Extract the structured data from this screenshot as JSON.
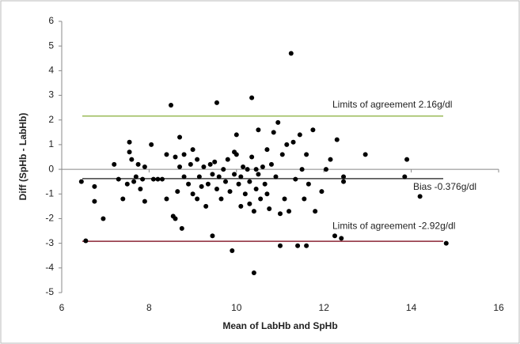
{
  "chart_data": {
    "type": "scatter",
    "x_label": "Mean of LabHb and SpHb",
    "y_label": "Diff (SpHb - LabHb)",
    "color": "#000000",
    "xlim": [
      6,
      16
    ],
    "xticks": [
      6,
      8,
      10,
      12,
      14,
      16
    ],
    "ylim": [
      -5,
      6
    ],
    "yticks": [
      -5,
      -4,
      -3,
      -2,
      -1,
      0,
      1,
      2,
      3,
      4,
      5,
      6
    ],
    "x": [
      6.45,
      6.55,
      6.75,
      6.75,
      6.95,
      7.2,
      7.4,
      7.5,
      7.55,
      7.55,
      7.6,
      7.65,
      7.7,
      7.75,
      7.8,
      7.85,
      7.9,
      7.9,
      8.05,
      8.1,
      8.2,
      8.3,
      8.4,
      8.4,
      8.5,
      8.55,
      8.6,
      8.6,
      8.65,
      8.7,
      8.7,
      8.75,
      8.8,
      8.8,
      8.9,
      8.95,
      9.0,
      9.0,
      9.1,
      9.1,
      9.15,
      9.2,
      9.25,
      9.3,
      9.35,
      9.4,
      9.45,
      9.45,
      9.5,
      9.55,
      9.55,
      9.6,
      9.65,
      9.7,
      9.75,
      9.8,
      9.85,
      9.9,
      9.95,
      9.95,
      10.0,
      10.0,
      10.05,
      10.1,
      10.1,
      10.15,
      10.2,
      10.25,
      10.3,
      10.3,
      10.35,
      10.35,
      10.4,
      10.4,
      10.45,
      10.45,
      10.5,
      10.5,
      10.55,
      10.6,
      10.65,
      10.7,
      10.7,
      10.75,
      10.8,
      10.85,
      10.9,
      10.95,
      11.0,
      11.0,
      11.05,
      11.1,
      11.15,
      11.2,
      11.25,
      11.3,
      11.35,
      11.4,
      11.45,
      11.5,
      11.55,
      11.6,
      11.65,
      11.75,
      11.8,
      11.95,
      12.05,
      12.15,
      12.25,
      12.3,
      12.4,
      12.45,
      12.45,
      12.95,
      13.85,
      13.9,
      14.2,
      14.8,
      11.6,
      7.3
    ],
    "values": [
      -0.5,
      -2.9,
      -0.7,
      -1.3,
      -2.0,
      0.2,
      -1.2,
      -0.6,
      1.1,
      0.7,
      0.4,
      -0.5,
      -0.3,
      0.2,
      -0.8,
      -0.4,
      -1.3,
      0.1,
      1.0,
      -0.4,
      -0.4,
      -0.4,
      -1.2,
      0.6,
      2.6,
      -1.9,
      -2.0,
      0.5,
      -0.9,
      1.3,
      0.1,
      -2.4,
      -0.3,
      0.6,
      -0.6,
      0.2,
      0.8,
      -1.0,
      0.4,
      -1.2,
      -0.3,
      -0.7,
      0.1,
      -1.5,
      -0.6,
      0.2,
      -0.2,
      -2.7,
      0.3,
      2.7,
      -0.8,
      -0.3,
      -1.2,
      0.0,
      -0.5,
      0.4,
      -0.9,
      -3.3,
      0.7,
      -0.2,
      0.6,
      1.4,
      -0.6,
      -1.5,
      -0.3,
      0.1,
      -1.0,
      0.0,
      -0.5,
      -1.4,
      2.9,
      0.5,
      -1.7,
      -4.2,
      0.0,
      -0.8,
      -0.2,
      1.6,
      -1.2,
      0.1,
      -0.6,
      0.8,
      -1.0,
      -1.6,
      0.2,
      1.5,
      -0.3,
      1.9,
      -1.8,
      -3.1,
      0.6,
      -1.2,
      1.0,
      -1.7,
      4.7,
      1.1,
      -0.4,
      -3.1,
      1.4,
      0.0,
      -1.2,
      0.6,
      -0.6,
      1.6,
      -1.7,
      -0.9,
      0.0,
      0.4,
      -2.7,
      1.2,
      -2.8,
      -0.3,
      -0.5,
      0.6,
      -0.3,
      0.4,
      -1.1,
      -3.0,
      -3.1,
      -0.4
    ],
    "reference_lines": [
      {
        "value": 2.16,
        "label": "Limits of agreement 2.16g/dl",
        "color": "#9bbb59"
      },
      {
        "value": -0.376,
        "label": "Bias  -0.376g/dl",
        "color": "#404040"
      },
      {
        "value": -2.92,
        "label": "Limits of agreement -2.92g/dl",
        "color": "#8b2535"
      }
    ]
  }
}
